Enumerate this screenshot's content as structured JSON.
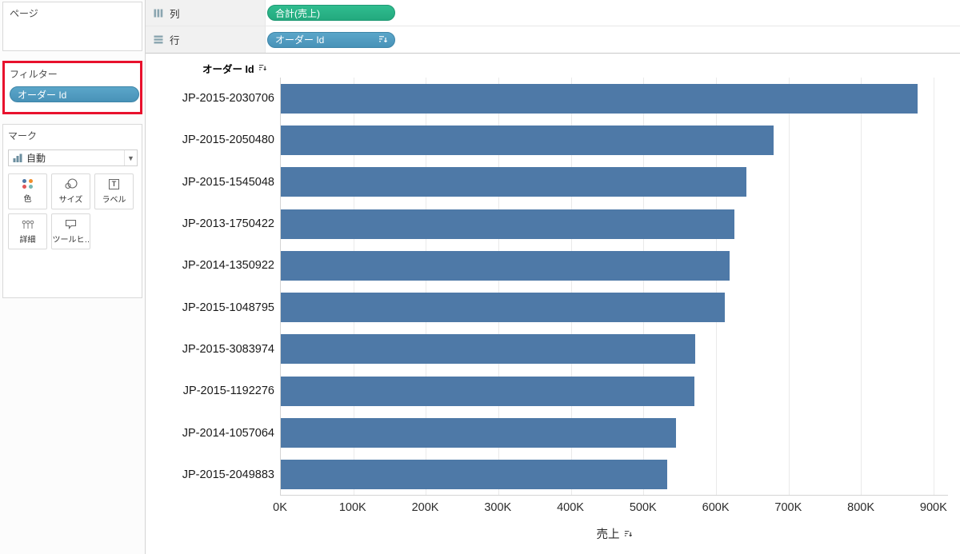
{
  "colors": {
    "bar": "#4e79a7",
    "measure_pill_green": "#28b184",
    "dimension_pill_blue": "#4e9bc0",
    "highlight_red": "#e8112d"
  },
  "sidebar": {
    "pages_label": "ページ",
    "filters_label": "フィルター",
    "filter_pill": "オーダー Id",
    "marks_label": "マーク",
    "marks_type_label": "自動",
    "marks_buttons": [
      {
        "label": "色"
      },
      {
        "label": "サイズ"
      },
      {
        "label": "ラベル"
      },
      {
        "label": "詳細"
      },
      {
        "label": "ツールヒ…"
      }
    ]
  },
  "shelves": {
    "columns_label": "列",
    "columns_pill": "合計(売上)",
    "rows_label": "行",
    "rows_pill": "オーダー Id"
  },
  "chart_data": {
    "type": "bar",
    "orientation": "horizontal",
    "title": "オーダー Id",
    "categories": [
      "JP-2015-2030706",
      "JP-2015-2050480",
      "JP-2015-1545048",
      "JP-2013-1750422",
      "JP-2014-1350922",
      "JP-2015-1048795",
      "JP-2015-3083974",
      "JP-2015-1192276",
      "JP-2014-1057064",
      "JP-2015-2049883"
    ],
    "values": [
      878,
      680,
      642,
      625,
      619,
      612,
      571,
      570,
      545,
      533
    ],
    "value_unit": "K",
    "xlabel": "売上",
    "x_tick_labels": [
      "0K",
      "100K",
      "200K",
      "300K",
      "400K",
      "500K",
      "600K",
      "700K",
      "800K",
      "900K"
    ],
    "x_tick_values": [
      0,
      100,
      200,
      300,
      400,
      500,
      600,
      700,
      800,
      900
    ],
    "xlim": [
      0,
      920
    ],
    "grid": true,
    "legend": "none",
    "bar_color": "#4e79a7"
  }
}
